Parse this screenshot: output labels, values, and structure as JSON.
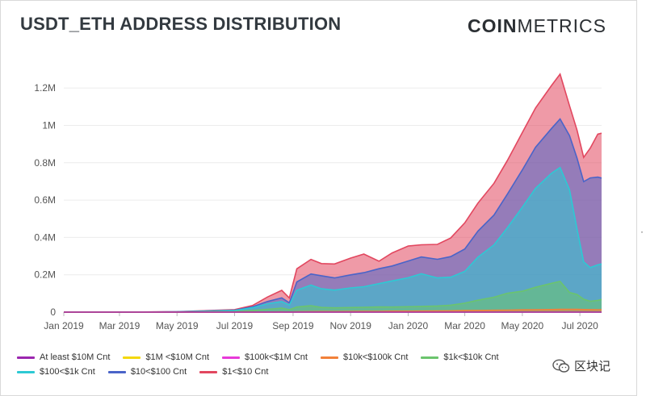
{
  "header": {
    "title": "USDT_ETH ADDRESS DISTRIBUTION",
    "brand_bold": "COIN",
    "brand_light": "METRICS"
  },
  "watermark": {
    "text": "区块记",
    "icon": "wechat-icon"
  },
  "side_mark": "·",
  "chart_data": {
    "type": "area",
    "stacked": true,
    "title": "USDT_ETH ADDRESS DISTRIBUTION",
    "xlabel": "",
    "ylabel": "",
    "x_range": [
      "2019-01-01",
      "2020-07-24"
    ],
    "ylim": [
      0,
      1300000
    ],
    "y_ticks": [
      0,
      200000,
      400000,
      600000,
      800000,
      1000000,
      1200000
    ],
    "y_tick_labels": [
      "0",
      "0.2M",
      "0.4M",
      "0.6M",
      "0.8M",
      "1M",
      "1.2M"
    ],
    "x_tick_labels": [
      {
        "date": "2019-01-01",
        "label": "Jan 2019"
      },
      {
        "date": "2019-03-01",
        "label": "Mar 2019"
      },
      {
        "date": "2019-05-01",
        "label": "May 2019"
      },
      {
        "date": "2019-07-01",
        "label": "Jul 2019"
      },
      {
        "date": "2019-09-01",
        "label": "Sep 2019"
      },
      {
        "date": "2019-11-01",
        "label": "Nov 2019"
      },
      {
        "date": "2020-01-01",
        "label": "Jan 2020"
      },
      {
        "date": "2020-03-01",
        "label": "Mar 2020"
      },
      {
        "date": "2020-05-01",
        "label": "May 2020"
      },
      {
        "date": "2020-07-01",
        "label": "Jul 2020"
      }
    ],
    "grid": true,
    "legend_position": "bottom",
    "x": [
      "2019-01-01",
      "2019-03-01",
      "2019-05-01",
      "2019-07-01",
      "2019-07-20",
      "2019-08-05",
      "2019-08-20",
      "2019-08-28",
      "2019-09-05",
      "2019-09-20",
      "2019-10-01",
      "2019-10-15",
      "2019-11-01",
      "2019-11-15",
      "2019-12-01",
      "2019-12-15",
      "2020-01-01",
      "2020-01-15",
      "2020-02-01",
      "2020-02-15",
      "2020-03-01",
      "2020-03-15",
      "2020-04-01",
      "2020-04-15",
      "2020-05-01",
      "2020-05-15",
      "2020-06-01",
      "2020-06-10",
      "2020-06-20",
      "2020-06-28",
      "2020-07-05",
      "2020-07-12",
      "2020-07-20",
      "2020-07-24"
    ],
    "series": [
      {
        "name": "At least $10M Cnt",
        "color": "#9b27af",
        "values": [
          0,
          0,
          0,
          0,
          0,
          0,
          0,
          0,
          0,
          0,
          0,
          0,
          0,
          0,
          0,
          0,
          0,
          0,
          0,
          0,
          0,
          0,
          0,
          0,
          0,
          0,
          0,
          0,
          0,
          0,
          0,
          0,
          0,
          0
        ]
      },
      {
        "name": "$1M <$10M Cnt",
        "color": "#f4d80c",
        "values": [
          0,
          0,
          0,
          0,
          0,
          0,
          0,
          0,
          0,
          0,
          0,
          0,
          0,
          0,
          0,
          0,
          0,
          0,
          0,
          0,
          0,
          0,
          0,
          0,
          0,
          0,
          0,
          0,
          0,
          0,
          0,
          0,
          0,
          0
        ]
      },
      {
        "name": "$100k<$1M Cnt",
        "color": "#e83ad9",
        "values": [
          0,
          0,
          0,
          0,
          0,
          0,
          0,
          0,
          0,
          0,
          0,
          0,
          0,
          0,
          0,
          0,
          0,
          0,
          0,
          0,
          0,
          0,
          0,
          0,
          0,
          0,
          0,
          0,
          0,
          0,
          0,
          0,
          0,
          0
        ]
      },
      {
        "name": "$10k<$100k Cnt",
        "color": "#f2813a",
        "values": [
          0,
          0,
          0,
          200,
          500,
          1000,
          1500,
          1000,
          2000,
          2500,
          3000,
          3000,
          3500,
          4000,
          4500,
          5000,
          5000,
          5500,
          6000,
          7000,
          8000,
          9000,
          10000,
          11000,
          12000,
          13000,
          14000,
          14500,
          15000,
          14500,
          14000,
          13500,
          13000,
          13000
        ]
      },
      {
        "name": "$1k<$10k Cnt",
        "color": "#6bc46d",
        "values": [
          0,
          0,
          500,
          3000,
          8000,
          14000,
          20000,
          12000,
          25000,
          32000,
          22000,
          20000,
          21000,
          22000,
          23000,
          22000,
          24000,
          25000,
          27000,
          30000,
          40000,
          55000,
          70000,
          90000,
          100000,
          120000,
          140000,
          150000,
          90000,
          80000,
          55000,
          45000,
          50000,
          55000
        ]
      },
      {
        "name": "$100<$1k Cnt",
        "color": "#2dc9d4",
        "values": [
          0,
          0,
          1000,
          5000,
          15000,
          30000,
          35000,
          25000,
          90000,
          110000,
          100000,
          95000,
          105000,
          110000,
          125000,
          140000,
          155000,
          175000,
          150000,
          150000,
          170000,
          230000,
          280000,
          350000,
          450000,
          530000,
          590000,
          610000,
          550000,
          350000,
          200000,
          180000,
          190000,
          190000
        ]
      },
      {
        "name": "$10<$100 Cnt",
        "color": "#4a64c8",
        "values": [
          0,
          0,
          500,
          2000,
          5000,
          12000,
          20000,
          12000,
          45000,
          60000,
          70000,
          65000,
          70000,
          75000,
          80000,
          80000,
          90000,
          90000,
          100000,
          110000,
          120000,
          140000,
          160000,
          180000,
          200000,
          220000,
          240000,
          260000,
          290000,
          380000,
          430000,
          480000,
          470000,
          460000
        ]
      },
      {
        "name": "$1<$10 Cnt",
        "color": "#e2475f",
        "values": [
          0,
          0,
          500,
          3000,
          7000,
          24000,
          40000,
          26000,
          70000,
          78000,
          65000,
          75000,
          90000,
          100000,
          40000,
          70000,
          80000,
          65000,
          80000,
          100000,
          140000,
          150000,
          170000,
          180000,
          200000,
          210000,
          230000,
          240000,
          160000,
          150000,
          130000,
          160000,
          230000,
          240000
        ]
      }
    ]
  }
}
